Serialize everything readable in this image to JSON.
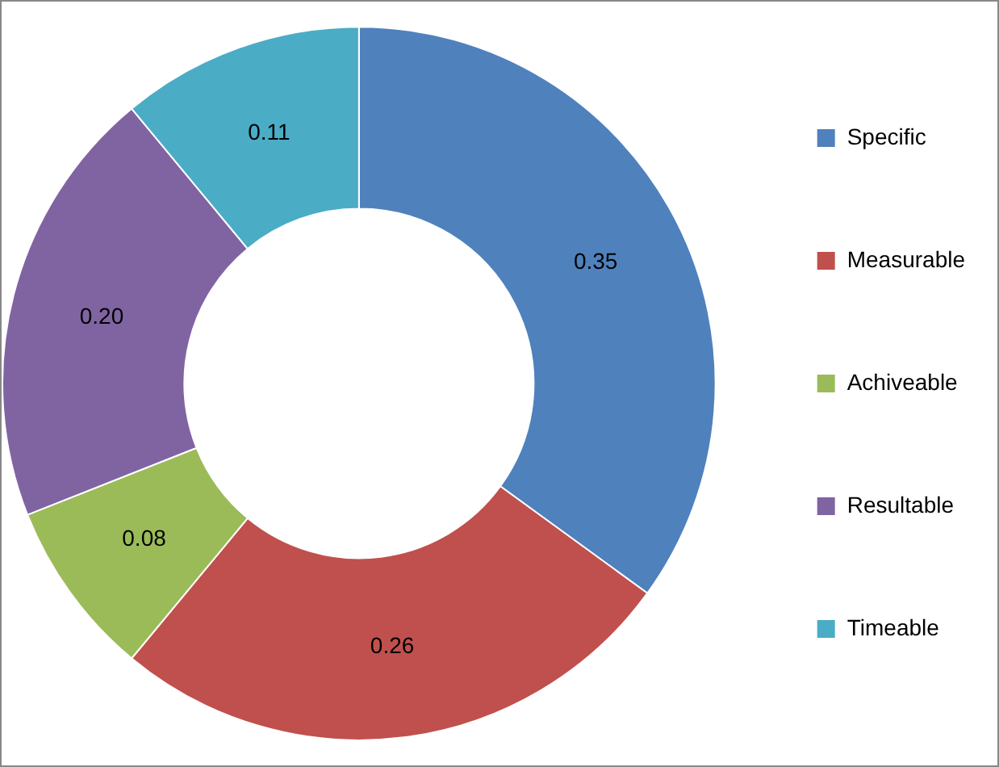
{
  "chart_data": {
    "type": "donut",
    "categories": [
      "Specific",
      "Measurable",
      "Achiveable",
      "Resultable",
      "Timeable"
    ],
    "values": [
      0.35,
      0.26,
      0.08,
      0.2,
      0.11
    ],
    "value_labels": [
      "0.35",
      "0.26",
      "0.08",
      "0.20",
      "0.11"
    ],
    "colors": [
      "#4f81bd",
      "#c0504d",
      "#9bbb59",
      "#8064a2",
      "#4bacc6"
    ],
    "legend": "right"
  }
}
